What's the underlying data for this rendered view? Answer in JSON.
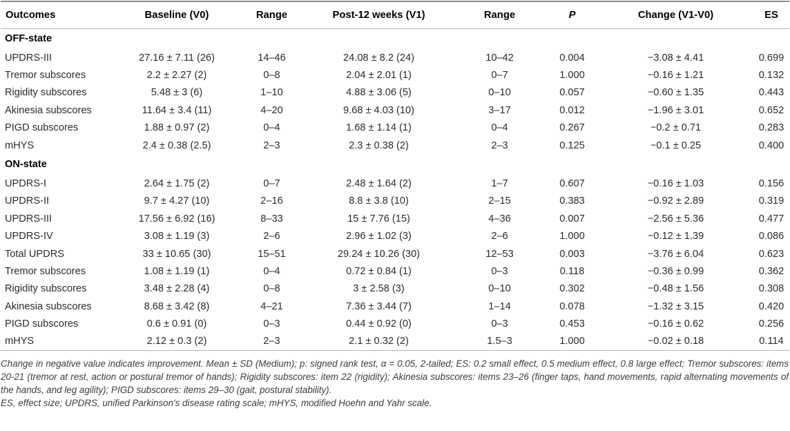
{
  "table": {
    "columns": [
      "Outcomes",
      "Baseline (V0)",
      "Range",
      "Post-12 weeks (V1)",
      "Range",
      "P",
      "Change (V1-V0)",
      "ES"
    ],
    "sections": [
      {
        "label": "OFF-state",
        "rows": [
          [
            "UPDRS-III",
            "27.16 ± 7.11 (26)",
            "14–46",
            "24.08 ± 8.2 (24)",
            "10–42",
            "0.004",
            "−3.08 ± 4.41",
            "0.699"
          ],
          [
            "Tremor subscores",
            "2.2 ± 2.27 (2)",
            "0–8",
            "2.04 ± 2.01 (1)",
            "0–7",
            "1.000",
            "−0.16 ± 1.21",
            "0.132"
          ],
          [
            "Rigidity subscores",
            "5.48 ± 3 (6)",
            "1–10",
            "4.88 ± 3.06 (5)",
            "0–10",
            "0.057",
            "−0.60 ± 1.35",
            "0.443"
          ],
          [
            "Akinesia subscores",
            "11.64 ± 3.4 (11)",
            "4–20",
            "9.68 ± 4.03 (10)",
            "3–17",
            "0.012",
            "−1.96 ± 3.01",
            "0.652"
          ],
          [
            "PIGD subscores",
            "1.88 ± 0.97 (2)",
            "0–4",
            "1.68 ± 1.14 (1)",
            "0–4",
            "0.267",
            "−0.2 ± 0.71",
            "0.283"
          ],
          [
            "mHYS",
            "2.4 ± 0.38 (2.5)",
            "2–3",
            "2.3 ± 0.38 (2)",
            "2–3",
            "0.125",
            "−0.1 ± 0.25",
            "0.400"
          ]
        ]
      },
      {
        "label": "ON-state",
        "rows": [
          [
            "UPDRS-I",
            "2.64 ± 1.75 (2)",
            "0–7",
            "2.48 ± 1.64 (2)",
            "1–7",
            "0.607",
            "−0.16 ± 1.03",
            "0.156"
          ],
          [
            "UPDRS-II",
            "9.7 ± 4.27 (10)",
            "2–16",
            "8.8 ± 3.8 (10)",
            "2–15",
            "0.383",
            "−0.92 ± 2.89",
            "0.319"
          ],
          [
            "UPDRS-III",
            "17.56 ± 6.92 (16)",
            "8–33",
            "15 ± 7.76 (15)",
            "4–36",
            "0.007",
            "−2.56 ± 5.36",
            "0.477"
          ],
          [
            "UPDRS-IV",
            "3.08 ± 1.19 (3)",
            "2–6",
            "2.96 ± 1.02 (3)",
            "2–6",
            "1.000",
            "−0.12 ± 1.39",
            "0.086"
          ],
          [
            "Total UPDRS",
            "33 ± 10.65 (30)",
            "15–51",
            "29.24 ± 10.26 (30)",
            "12–53",
            "0.003",
            "−3.76 ± 6.04",
            "0.623"
          ],
          [
            "Tremor subscores",
            "1.08 ± 1.19 (1)",
            "0–4",
            "0.72 ± 0.84 (1)",
            "0–3",
            "0.118",
            "−0.36 ± 0.99",
            "0.362"
          ],
          [
            "Rigidity subscores",
            "3.48 ± 2.28 (4)",
            "0–8",
            "3 ± 2.58 (3)",
            "0–10",
            "0.302",
            "−0.48 ± 1.56",
            "0.308"
          ],
          [
            "Akinesia subscores",
            "8.68 ± 3.42 (8)",
            "4–21",
            "7.36 ± 3.44 (7)",
            "1–14",
            "0.078",
            "−1.32 ± 3.15",
            "0.420"
          ],
          [
            "PIGD subscores",
            "0.6 ± 0.91 (0)",
            "0–3",
            "0.44 ± 0.92 (0)",
            "0–3",
            "0.453",
            "−0.16 ± 0.62",
            "0.256"
          ],
          [
            "mHYS",
            "2.12 ± 0.3 (2)",
            "2–3",
            "2.1 ± 0.32 (2)",
            "1.5–3",
            "1.000",
            "−0.02 ± 0.18",
            "0.114"
          ]
        ]
      }
    ]
  },
  "footnotes": {
    "legend": "Change in negative value indicates improvement. Mean ± SD (Medium); p: signed rank test, α = 0.05, 2-tailed; ES: 0.2 small effect, 0.5 medium effect, 0.8 large effect; Tremor subscores: items 20-21 (tremor at rest, action or postural tremor of hands); Rigidity subscores: item 22 (rigidity); Akinesia subscores: items 23–26 (finger taps, hand movements, rapid alternating movements of the hands, and leg agility); PIGD subscores: items 29–30 (gait, postural stability).",
    "abbreviations": "ES, effect size; UPDRS, unified Parkinson's disease rating scale; mHYS, modified Hoehn and Yahr scale."
  },
  "colors": {
    "rule_top": "#8c8c8c",
    "rule_light": "#b3b3b3",
    "header_text": "#000000",
    "body_text": "#2b2b2b",
    "footnote_text": "#3c3c3c"
  }
}
